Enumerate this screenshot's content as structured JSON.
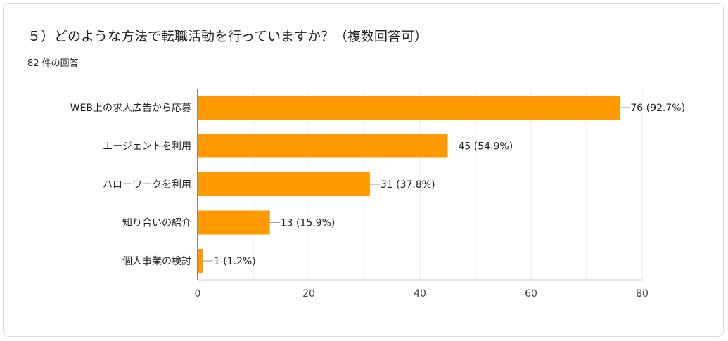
{
  "question": {
    "title": "５）どのような方法で転職活動を行っていますか？（複数回答可）",
    "response_count": "82 件の回答"
  },
  "colors": {
    "bar": "#ff9900",
    "axis": "#333333",
    "grid": "#ebebeb",
    "text": "#222222"
  },
  "chart_data": {
    "type": "bar",
    "orientation": "horizontal",
    "categories": [
      "WEB上の求人広告から応募",
      "エージェントを利用",
      "ハローワークを利用",
      "知り合いの紹介",
      "個人事業の検討"
    ],
    "values": [
      76,
      45,
      31,
      13,
      1
    ],
    "data_labels": [
      "76 (92.7%)",
      "45 (54.9%)",
      "31 (37.8%)",
      "13 (15.9%)",
      "1 (1.2%)"
    ],
    "xlim": [
      0,
      80
    ],
    "xticks": [
      0,
      20,
      40,
      60,
      80
    ],
    "grid": true,
    "legend": "none"
  }
}
